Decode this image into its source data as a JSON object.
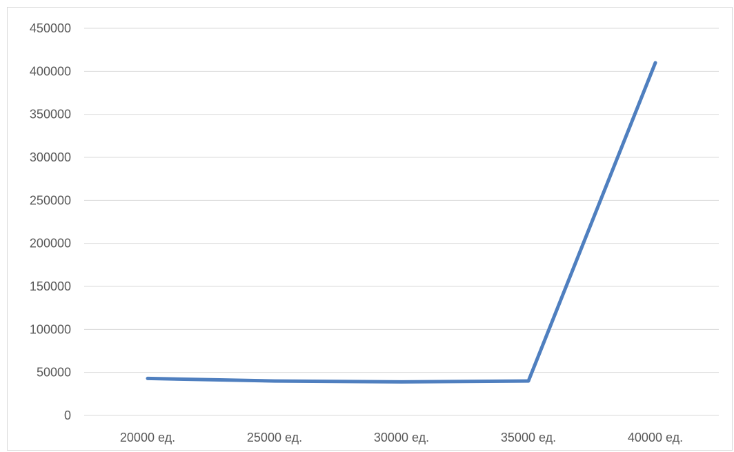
{
  "chart_data": {
    "type": "line",
    "categories": [
      "20000 ед.",
      "25000 ед.",
      "30000 ед.",
      "35000 ед.",
      "40000 ед."
    ],
    "series": [
      {
        "values": [
          43000,
          40000,
          39000,
          40000,
          410000
        ]
      }
    ],
    "ylim": [
      0,
      450000
    ],
    "y_ticks": [
      "0",
      "50000",
      "100000",
      "150000",
      "200000",
      "250000",
      "300000",
      "350000",
      "400000",
      "450000"
    ],
    "grid": true,
    "legend": "none",
    "title": "",
    "xlabel": "",
    "ylabel": ""
  },
  "colors": {
    "series": "#4f7fbf",
    "grid": "#d9d9d9",
    "text": "#595959"
  }
}
